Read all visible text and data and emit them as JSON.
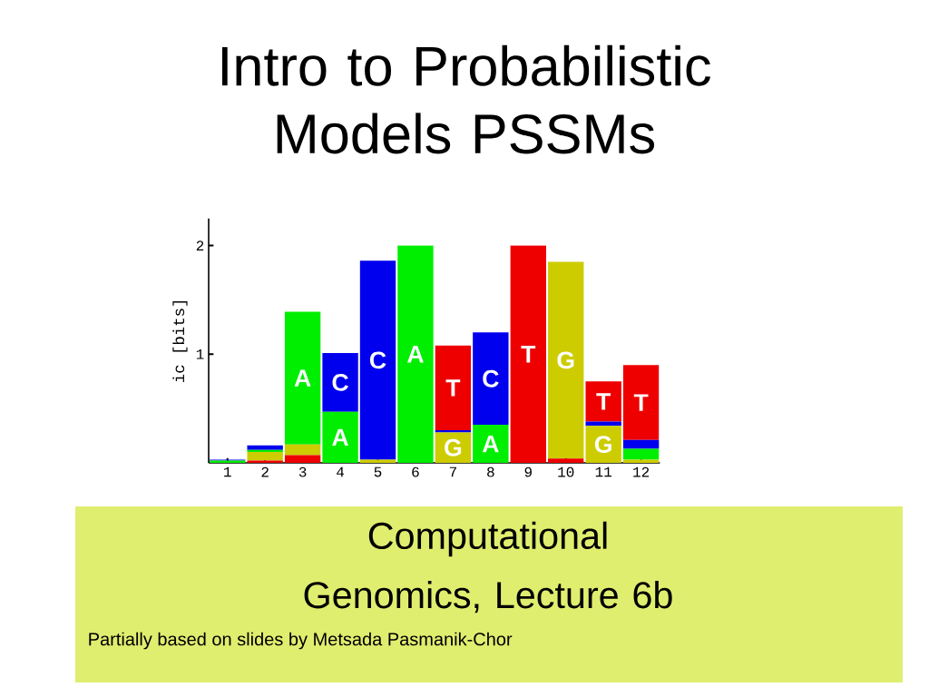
{
  "chart_data": {
    "type": "bar",
    "stacked": true,
    "title": "Intro to Probabilistic Models PSSMs",
    "subtitle": "Computational Genomics, Lecture 6b",
    "annotations": [
      "Partially based on slides by Metsada Pasmanik-Chor"
    ],
    "ylabel": "ic [bits]",
    "categories": [
      "1",
      "2",
      "3",
      "4",
      "5",
      "6",
      "7",
      "8",
      "9",
      "10",
      "11",
      "12"
    ],
    "series": [
      {
        "color": "#ee0000",
        "values": [
          0,
          0.02,
          0.07,
          0,
          0,
          0,
          0,
          0,
          0,
          0.04,
          0,
          0
        ]
      },
      {
        "name": "G",
        "color": "#cccc00",
        "values": [
          0,
          0.08,
          0.1,
          0,
          0.03,
          0,
          0.28,
          0,
          0,
          1.81,
          0.34,
          0.03
        ]
      },
      {
        "name": "A",
        "color": "#00ee00",
        "values": [
          0.02,
          0.02,
          1.22,
          0.47,
          0,
          2.0,
          0,
          0.35,
          0,
          0,
          0,
          0.1
        ]
      },
      {
        "name": "C",
        "color": "#0000ee",
        "values": [
          0.01,
          0.04,
          0,
          0.54,
          1.83,
          0,
          0.02,
          0.85,
          0,
          0,
          0.04,
          0.08
        ]
      },
      {
        "name": "T",
        "color": "#ee0000",
        "values": [
          0,
          0,
          0,
          0,
          0,
          0,
          0.78,
          0,
          2.0,
          0,
          0.37,
          0.69
        ]
      }
    ],
    "ylim": [
      0,
      2.25
    ],
    "yticks": [
      1,
      2
    ],
    "grid": false
  }
}
